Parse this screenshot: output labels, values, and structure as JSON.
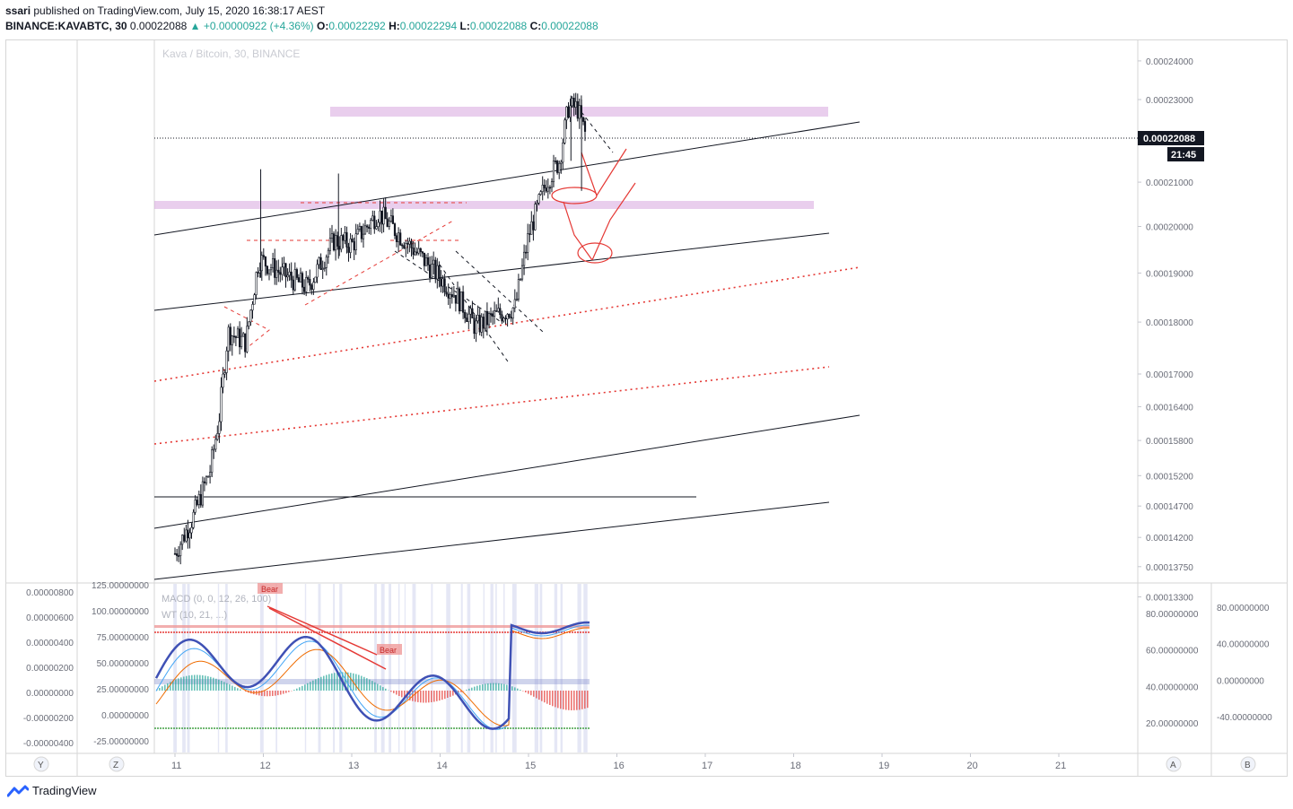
{
  "header": {
    "publisher": "ssari",
    "published_text": " published on TradingView.com, July 15, 2020 16:38:17 AEST",
    "symbol": "BINANCE:KAVABTC, 30",
    "last": "0.00022088",
    "change": "▲ +0.00000922 (+4.36%)",
    "o_label": "O:",
    "o_value": "0.00022292",
    "h_label": "H:",
    "h_value": "0.00022294",
    "l_label": "L:",
    "l_value": "0.00022088",
    "c_label": "C:",
    "c_value": "0.00022088"
  },
  "watermark": "Kava / Bitcoin, 30, BINANCE",
  "price_badge": "0.00022088",
  "countdown_badge": "21:45",
  "indicator_labels": {
    "macd": "MACD (0, 0, 12, 26, 100)",
    "wt": "WT (10, 21, ...)",
    "bear1": "Bear",
    "bear2": "Bear"
  },
  "bottom_buttons": {
    "left1": "Y",
    "left2": "Z",
    "right1": "A",
    "right2": "B"
  },
  "footer": {
    "brand": "TradingView"
  },
  "colors": {
    "up": "#26a69a",
    "purple_zone": "#ce93d8",
    "red_line": "#e53935",
    "blue_wave": "#3f51b5",
    "green_line": "#43a047"
  },
  "chart_data": {
    "type": "candlestick",
    "title": "Kava / Bitcoin, 30, BINANCE",
    "x_ticks": [
      "11",
      "12",
      "13",
      "14",
      "15",
      "16",
      "17",
      "18",
      "19",
      "20",
      "21"
    ],
    "y_ticks": [
      "0.00024000",
      "0.00023000",
      "0.00022088",
      "0.00021000",
      "0.00020000",
      "0.00019000",
      "0.00018000",
      "0.00017000",
      "0.00016400",
      "0.00015800",
      "0.00015200",
      "0.00014700",
      "0.00014200",
      "0.00013750",
      "0.00013300"
    ],
    "last_price": 0.00022088,
    "log_scale": true,
    "sub_left_ticks": [
      "0.00000800",
      "0.00000600",
      "0.00000400",
      "0.00000200",
      "0.00000000",
      "-0.00000200",
      "-0.00000400"
    ],
    "sub_inner_ticks": [
      "125.00000000",
      "100.00000000",
      "75.00000000",
      "50.00000000",
      "25.00000000",
      "0.00000000",
      "-25.00000000"
    ],
    "sub_right_inner_ticks": [
      "80.00000000",
      "60.00000000",
      "40.00000000",
      "20.00000000"
    ],
    "sub_right_outer_ticks": [
      "80.00000000",
      "40.00000000",
      "0.00000000",
      "-40.00000000"
    ],
    "approx_path": [
      [
        11.0,
        0.0001395
      ],
      [
        11.2,
        0.000145
      ],
      [
        11.4,
        0.000153
      ],
      [
        11.5,
        0.000162
      ],
      [
        11.6,
        0.000178
      ],
      [
        11.8,
        0.000176
      ],
      [
        11.95,
        0.000193
      ],
      [
        12.2,
        0.00019
      ],
      [
        12.5,
        0.000187
      ],
      [
        12.8,
        0.000197
      ],
      [
        13.0,
        0.000196
      ],
      [
        13.3,
        0.000203
      ],
      [
        13.6,
        0.000197
      ],
      [
        13.9,
        0.000191
      ],
      [
        14.2,
        0.000185
      ],
      [
        14.4,
        0.000179
      ],
      [
        14.6,
        0.000181
      ],
      [
        14.85,
        0.000183
      ],
      [
        15.0,
        0.000198
      ],
      [
        15.2,
        0.00021
      ],
      [
        15.35,
        0.000215
      ],
      [
        15.45,
        0.000228
      ],
      [
        15.55,
        0.000228
      ],
      [
        15.65,
        0.00022088
      ]
    ]
  }
}
